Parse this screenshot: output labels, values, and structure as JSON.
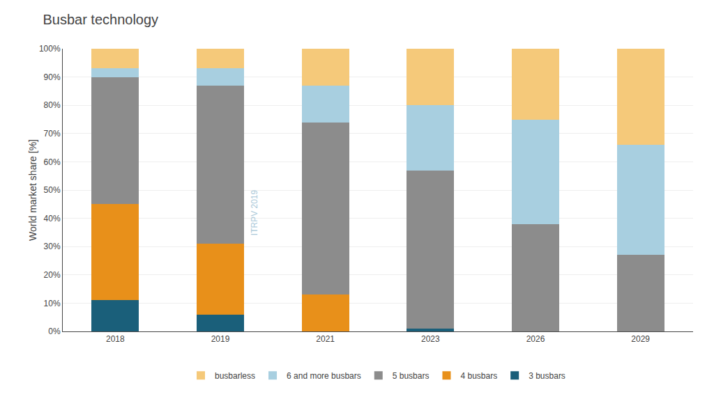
{
  "chart_data": {
    "type": "bar",
    "stacked": true,
    "title": "Busbar technology",
    "ylabel": "World market share [%]",
    "categories": [
      "2018",
      "2019",
      "2021",
      "2023",
      "2026",
      "2029"
    ],
    "series": [
      {
        "name": "3 busbars",
        "color": "#1a5f7a",
        "values": [
          11,
          6,
          0,
          1,
          0,
          0
        ]
      },
      {
        "name": "4 busbars",
        "color": "#e8901a",
        "values": [
          34,
          25,
          13,
          0,
          0,
          0
        ]
      },
      {
        "name": "5 busbars",
        "color": "#8c8c8c",
        "values": [
          45,
          56,
          61,
          56,
          38,
          27
        ]
      },
      {
        "name": "6 and more busbars",
        "color": "#a8cfe0",
        "values": [
          3,
          6,
          13,
          23,
          37,
          39
        ]
      },
      {
        "name": "busbarless",
        "color": "#f5c97a",
        "values": [
          7,
          7,
          13,
          20,
          25,
          34
        ]
      }
    ],
    "ylim": [
      0,
      100
    ],
    "yticks": [
      {
        "value": 0,
        "label": "0%"
      },
      {
        "value": 10,
        "label": "10%"
      },
      {
        "value": 20,
        "label": "20%"
      },
      {
        "value": 30,
        "label": "30%"
      },
      {
        "value": 40,
        "label": "40%"
      },
      {
        "value": 50,
        "label": "50%"
      },
      {
        "value": 60,
        "label": "60%"
      },
      {
        "value": 70,
        "label": "70%"
      },
      {
        "value": 80,
        "label": "80%"
      },
      {
        "value": 90,
        "label": "90%"
      },
      {
        "value": 100,
        "label": "100%"
      }
    ],
    "grid": true,
    "legend": "bottom",
    "annotations": [
      {
        "text": "ITRPV 2019"
      }
    ]
  }
}
